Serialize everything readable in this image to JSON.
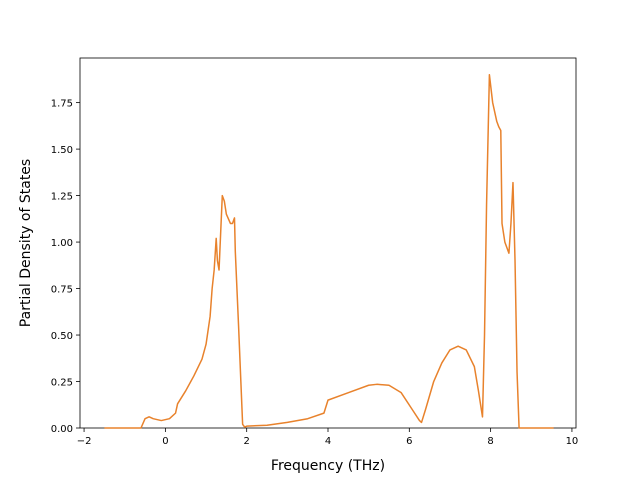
{
  "chart_data": {
    "type": "line",
    "xlabel": "Frequency (THz)",
    "ylabel": "Partial Density of States",
    "x": [
      -1.5,
      -0.6,
      -0.5,
      -0.4,
      -0.3,
      -0.1,
      0.1,
      0.25,
      0.3,
      0.5,
      0.7,
      0.9,
      1.0,
      1.1,
      1.15,
      1.2,
      1.25,
      1.28,
      1.32,
      1.4,
      1.45,
      1.5,
      1.6,
      1.65,
      1.7,
      1.72,
      1.8,
      1.9,
      1.95,
      2.0,
      2.5,
      3.0,
      3.5,
      3.9,
      4.0,
      4.5,
      5.0,
      5.2,
      5.5,
      5.8,
      6.1,
      6.25,
      6.3,
      6.4,
      6.6,
      6.8,
      7.0,
      7.2,
      7.4,
      7.6,
      7.7,
      7.8,
      7.85,
      7.9,
      7.97,
      8.05,
      8.15,
      8.2,
      8.25,
      8.28,
      8.35,
      8.45,
      8.5,
      8.55,
      8.6,
      8.65,
      8.7,
      9.55
    ],
    "series": [
      {
        "color": "#e8822c",
        "values": [
          0,
          0,
          0.05,
          0.06,
          0.05,
          0.04,
          0.05,
          0.08,
          0.13,
          0.2,
          0.28,
          0.37,
          0.45,
          0.6,
          0.75,
          0.85,
          1.02,
          0.9,
          0.85,
          1.25,
          1.22,
          1.15,
          1.1,
          1.1,
          1.13,
          0.95,
          0.55,
          0.02,
          0.005,
          0.01,
          0.015,
          0.03,
          0.05,
          0.08,
          0.15,
          0.19,
          0.23,
          0.235,
          0.23,
          0.19,
          0.09,
          0.04,
          0.03,
          0.1,
          0.25,
          0.35,
          0.42,
          0.44,
          0.42,
          0.33,
          0.2,
          0.06,
          0.5,
          1.2,
          1.9,
          1.75,
          1.65,
          1.62,
          1.6,
          1.1,
          1.0,
          0.94,
          1.1,
          1.32,
          0.9,
          0.3,
          0,
          0
        ]
      }
    ],
    "xlim": [
      -2.1,
      10.1
    ],
    "xticks": [
      {
        "value": -2,
        "label": "−2"
      },
      0,
      2,
      4,
      6,
      8,
      10
    ],
    "ylim": [
      0,
      1.99
    ],
    "yticks": [
      {
        "value": 0,
        "label": "0.00"
      },
      {
        "value": 0.25,
        "label": "0.25"
      },
      {
        "value": 0.5,
        "label": "0.50"
      },
      {
        "value": 0.75,
        "label": "0.75"
      },
      {
        "value": 1,
        "label": "1.00"
      },
      {
        "value": 1.25,
        "label": "1.25"
      },
      {
        "value": 1.5,
        "label": "1.50"
      },
      {
        "value": 1.75,
        "label": "1.75"
      }
    ]
  }
}
